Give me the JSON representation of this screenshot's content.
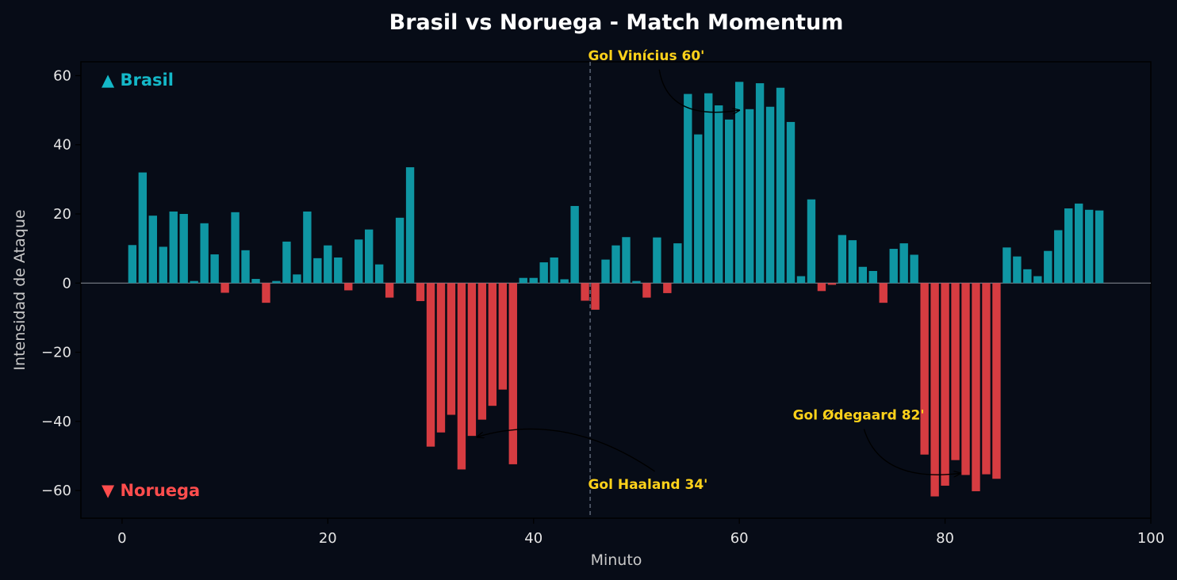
{
  "chart_data": {
    "type": "bar",
    "title": "Brasil vs Noruega - Match Momentum",
    "xlabel": "Minuto",
    "ylabel": "Intensidad de Ataque",
    "xlim": [
      -4,
      100
    ],
    "ylim": [
      -68,
      64
    ],
    "xticks": [
      0,
      20,
      40,
      60,
      80,
      100
    ],
    "yticks": [
      60,
      40,
      20,
      0,
      -20,
      -40,
      -60
    ],
    "halftime_minute": 45.5,
    "colors": {
      "positive": "#0f96a3",
      "negative": "#d63c41",
      "annotation": "#ffd21a",
      "background": "#070c17"
    },
    "series": [
      {
        "name": "Brasil",
        "marker": "▲",
        "color": "#14b8c8",
        "legend_position": "top-left"
      },
      {
        "name": "Noruega",
        "marker": "▼",
        "color": "#ff4d4d",
        "legend_position": "bottom-left"
      }
    ],
    "x": [
      1,
      2,
      3,
      4,
      5,
      6,
      7,
      8,
      9,
      10,
      11,
      12,
      13,
      14,
      15,
      16,
      17,
      18,
      19,
      20,
      21,
      22,
      23,
      24,
      25,
      26,
      27,
      28,
      29,
      30,
      31,
      32,
      33,
      34,
      35,
      36,
      37,
      38,
      39,
      40,
      41,
      42,
      43,
      44,
      45,
      46,
      47,
      48,
      49,
      50,
      51,
      52,
      53,
      54,
      55,
      56,
      57,
      58,
      59,
      60,
      61,
      62,
      63,
      64,
      65,
      66,
      67,
      68,
      69,
      70,
      71,
      72,
      73,
      74,
      75,
      76,
      77,
      78,
      79,
      80,
      81,
      82,
      83,
      84,
      85,
      86,
      87,
      88,
      89,
      90,
      91,
      92,
      93,
      94,
      95
    ],
    "values": [
      11,
      32,
      19.5,
      10.5,
      20.7,
      20,
      0.6,
      17.3,
      8.3,
      -2.8,
      20.5,
      9.5,
      1.2,
      -5.7,
      0.6,
      12,
      2.5,
      20.7,
      7.2,
      10.9,
      7.4,
      -2.1,
      12.6,
      15.5,
      5.4,
      -4.2,
      18.9,
      33.5,
      -5.2,
      -47.3,
      -43.2,
      -38.1,
      -53.9,
      -44.2,
      -39.5,
      -35.5,
      -30.8,
      -52.4,
      1.5,
      1.5,
      6,
      7.4,
      1.1,
      22.3,
      -5.1,
      -7.7,
      6.8,
      10.9,
      13.3,
      0.6,
      -4.2,
      13.2,
      -2.9,
      11.5,
      54.7,
      43,
      54.9,
      51.4,
      47.3,
      58.2,
      50.3,
      57.8,
      51,
      56.5,
      46.6,
      2,
      24.2,
      -2.3,
      -0.5,
      13.9,
      12.4,
      4.7,
      3.5,
      -5.7,
      9.9,
      11.5,
      8.2,
      -49.6,
      -61.7,
      -58.6,
      -51.2,
      -55.5,
      -60.2,
      -55.3,
      -56.6,
      10.3,
      7.7,
      4,
      2,
      9.3,
      15.3,
      21.6,
      23,
      21.2,
      21
    ],
    "annotations": [
      {
        "text": "Gol Vinícius 60'",
        "x": 60,
        "y": 50,
        "text_x": 45.3,
        "text_y": 64.5
      },
      {
        "text": "Gol Haaland 34'",
        "x": 34.5,
        "y": -44.5,
        "text_x": 45.3,
        "text_y": -59.5
      },
      {
        "text": "Gol Ødegaard 82'",
        "x": 81.5,
        "y": -55,
        "text_x": 65.2,
        "text_y": -39.5
      }
    ]
  }
}
